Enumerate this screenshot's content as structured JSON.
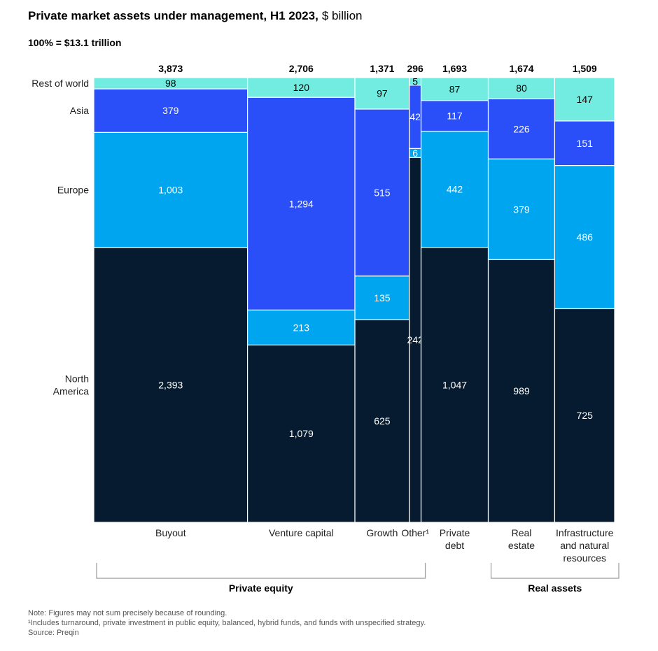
{
  "title_bold": "Private market assets under management, H1 2023,",
  "title_unit": "$ billion",
  "subtitle": "100% = $13.1 trillion",
  "notes": [
    "Note: Figures may not sum precisely because of rounding.",
    "¹Includes turnaround, private investment in public equity, balanced, hybrid funds, and funds with unspecified strategy.",
    "Source: Preqin"
  ],
  "colors": {
    "North America": "#061b2f",
    "Europe": "#00a5f0",
    "Asia": "#2a4ef7",
    "Rest of world": "#72ece0"
  },
  "chart_data": {
    "type": "marimekko",
    "regions": [
      "North America",
      "Europe",
      "Asia",
      "Rest of world"
    ],
    "region_labels": [
      [
        "North",
        "America"
      ],
      [
        "Europe"
      ],
      [
        "Asia"
      ],
      [
        "Rest of world"
      ]
    ],
    "categories": [
      {
        "name": "Buyout",
        "label_lines": [
          "Buyout"
        ],
        "total": "3,873",
        "values": [
          2393,
          1003,
          379,
          98
        ],
        "labels": [
          "2,393",
          "1,003",
          "379",
          "98"
        ]
      },
      {
        "name": "Venture capital",
        "label_lines": [
          "Venture capital"
        ],
        "total": "2,706",
        "values": [
          1079,
          213,
          1294,
          120
        ],
        "labels": [
          "1,079",
          "213",
          "1,294",
          "120"
        ]
      },
      {
        "name": "Growth",
        "label_lines": [
          "Growth"
        ],
        "total": "1,371",
        "values": [
          625,
          135,
          515,
          97
        ],
        "labels": [
          "625",
          "135",
          "515",
          "97"
        ]
      },
      {
        "name": "Other¹",
        "label_lines": [
          "Other¹"
        ],
        "total": "296",
        "values": [
          242,
          6,
          42,
          5
        ],
        "labels": [
          "242",
          "6",
          "42",
          "5"
        ]
      },
      {
        "name": "Private debt",
        "label_lines": [
          "Private",
          "debt"
        ],
        "total": "1,693",
        "values": [
          1047,
          442,
          117,
          87
        ],
        "labels": [
          "1,047",
          "442",
          "117",
          "87"
        ]
      },
      {
        "name": "Real estate",
        "label_lines": [
          "Real",
          "estate"
        ],
        "total": "1,674",
        "values": [
          989,
          379,
          226,
          80
        ],
        "labels": [
          "989",
          "379",
          "226",
          "80"
        ]
      },
      {
        "name": "Infrastructure and natural resources",
        "label_lines": [
          "Infrastructure",
          "and natural",
          "resources"
        ],
        "total": "1,509",
        "values": [
          725,
          486,
          151,
          147
        ],
        "labels": [
          "725",
          "486",
          "151",
          "147"
        ]
      }
    ],
    "groups": [
      {
        "label": "Private equity",
        "from": 0,
        "to": 3
      },
      {
        "label": "Real assets",
        "from": 5,
        "to": 6
      }
    ]
  }
}
